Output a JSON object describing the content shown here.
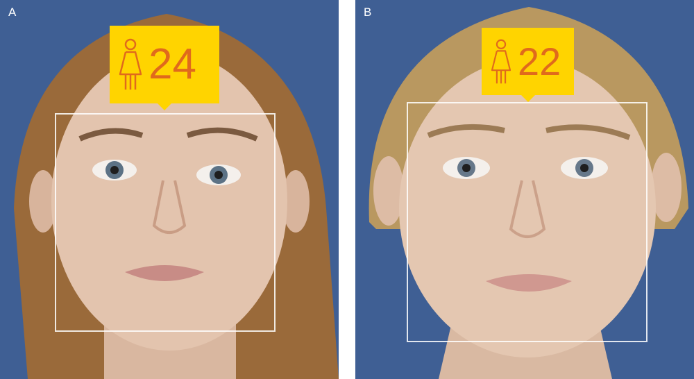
{
  "panels": [
    {
      "label": "A",
      "age": "24",
      "icon": "female-person-icon"
    },
    {
      "label": "B",
      "age": "22",
      "icon": "female-person-icon"
    }
  ],
  "colors": {
    "background": "#3f5f94",
    "tag": "#ffd400",
    "tag_text": "#e06a1c",
    "face_box": "#ffffff"
  }
}
